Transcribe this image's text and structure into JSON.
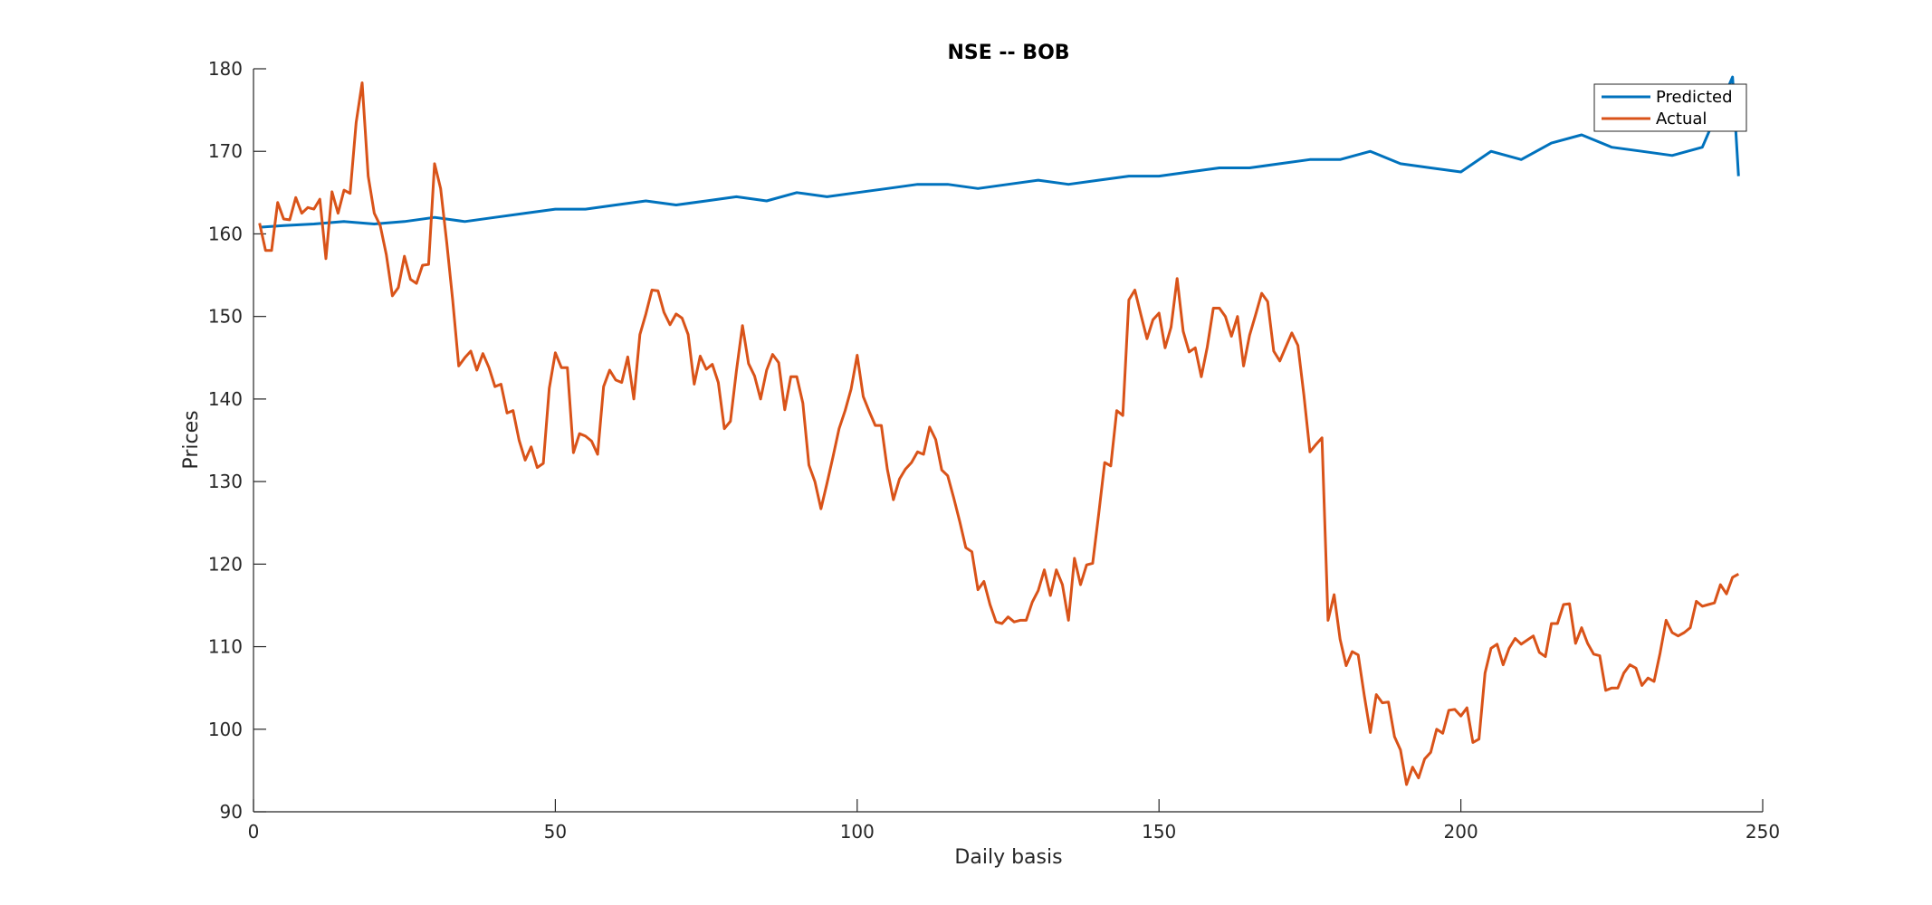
{
  "chart_data": {
    "type": "line",
    "title": "NSE -- BOB",
    "xlabel": "Daily basis",
    "ylabel": "Prices",
    "xlim": [
      0,
      250
    ],
    "ylim": [
      90,
      180
    ],
    "xticks": [
      0,
      50,
      100,
      150,
      200,
      250
    ],
    "yticks": [
      90,
      100,
      110,
      120,
      130,
      140,
      150,
      160,
      170,
      180
    ],
    "grid": false,
    "legend_position": "top-right",
    "series": [
      {
        "name": "Predicted",
        "color": "#0072BD",
        "x": [
          1,
          5,
          10,
          15,
          20,
          25,
          30,
          35,
          40,
          45,
          50,
          55,
          60,
          65,
          70,
          75,
          80,
          85,
          90,
          95,
          100,
          105,
          110,
          115,
          120,
          125,
          130,
          135,
          140,
          145,
          150,
          155,
          160,
          165,
          170,
          175,
          180,
          185,
          190,
          195,
          200,
          205,
          210,
          215,
          220,
          225,
          230,
          235,
          240,
          245,
          246
        ],
        "y": [
          160.8,
          161,
          161.2,
          161.5,
          161.2,
          161.5,
          162,
          161.5,
          162,
          162.5,
          163,
          163,
          163.5,
          164,
          163.5,
          164,
          164.5,
          164,
          165,
          164.5,
          165,
          165.5,
          166,
          166,
          165.5,
          166,
          166.5,
          166,
          166.5,
          167,
          167,
          167.5,
          168,
          168,
          168.5,
          169,
          169,
          170,
          168.5,
          168,
          167.5,
          170,
          169,
          171,
          172,
          170.5,
          170,
          169.5,
          170.5,
          179,
          167
        ]
      },
      {
        "name": "Actual",
        "color": "#D95319",
        "x": [
          1,
          2,
          3,
          4,
          5,
          6,
          7,
          8,
          9,
          10,
          11,
          12,
          13,
          14,
          15,
          16,
          17,
          18,
          19,
          20,
          21,
          22,
          23,
          24,
          25,
          26,
          27,
          28,
          29,
          30,
          31,
          32,
          33,
          34,
          35,
          36,
          37,
          38,
          39,
          40,
          41,
          42,
          43,
          44,
          45,
          46,
          47,
          48,
          49,
          50,
          51,
          52,
          53,
          54,
          55,
          56,
          57,
          58,
          59,
          60,
          61,
          62,
          63,
          64,
          65,
          66,
          67,
          68,
          69,
          70,
          71,
          72,
          73,
          74,
          75,
          76,
          77,
          78,
          79,
          80,
          81,
          82,
          83,
          84,
          85,
          86,
          87,
          88,
          89,
          90,
          91,
          92,
          93,
          94,
          95,
          96,
          97,
          98,
          99,
          100,
          101,
          102,
          103,
          104,
          105,
          106,
          107,
          108,
          109,
          110,
          111,
          112,
          113,
          114,
          115,
          116,
          117,
          118,
          119,
          120,
          121,
          122,
          123,
          124,
          125,
          126,
          127,
          128,
          129,
          130,
          131,
          132,
          133,
          134,
          135,
          136,
          137,
          138,
          139,
          140,
          141,
          142,
          143,
          144,
          145,
          146,
          147,
          148,
          149,
          150,
          151,
          152,
          153,
          154,
          155,
          156,
          157,
          158,
          159,
          160,
          161,
          162,
          163,
          164,
          165,
          166,
          167,
          168,
          169,
          170,
          171,
          172,
          173,
          174,
          175,
          176,
          177,
          178,
          179,
          180,
          181,
          182,
          183,
          184,
          185,
          186,
          187,
          188,
          189,
          190,
          191,
          192,
          193,
          194,
          195,
          196,
          197,
          198,
          199,
          200,
          201,
          202,
          203,
          204,
          205,
          206,
          207,
          208,
          209,
          210,
          211,
          212,
          213,
          214,
          215,
          216,
          217,
          218,
          219,
          220,
          221,
          222,
          223,
          224,
          225,
          226,
          227,
          228,
          229,
          230,
          231,
          232,
          233,
          234,
          235,
          236,
          237,
          238,
          239,
          240,
          241,
          242,
          243,
          244,
          245,
          246
        ],
        "y": [
          161.3,
          158,
          158,
          163.8,
          161.8,
          161.7,
          164.4,
          162.5,
          163.2,
          163,
          164.2,
          157,
          165.1,
          162.5,
          165.3,
          164.9,
          173.5,
          178.3,
          167,
          162.5,
          161,
          157.5,
          152.5,
          153.5,
          157.3,
          154.5,
          154,
          156.2,
          156.3,
          168.5,
          165.5,
          159,
          152,
          144,
          145,
          145.8,
          143.5,
          145.5,
          143.8,
          141.5,
          141.8,
          138.3,
          138.6,
          135,
          132.6,
          134.2,
          131.7,
          132.2,
          141.3,
          145.6,
          143.8,
          143.8,
          133.5,
          135.8,
          135.5,
          134.9,
          133.3,
          141.5,
          143.5,
          142.3,
          142,
          145.1,
          140,
          147.8,
          150.3,
          153.2,
          153.1,
          150.5,
          149,
          150.3,
          149.8,
          147.8,
          141.8,
          145.2,
          143.6,
          144.2,
          142,
          136.4,
          137.3,
          143.4,
          148.9,
          144.3,
          142.8,
          140,
          143.5,
          145.4,
          144.4,
          138.7,
          142.7,
          142.7,
          139.5,
          132,
          130,
          126.7,
          129.8,
          133,
          136.4,
          138.6,
          141.2,
          145.3,
          140.3,
          138.5,
          136.8,
          136.8,
          131.5,
          127.8,
          130.3,
          131.5,
          132.3,
          133.6,
          133.3,
          136.6,
          135.1,
          131.4,
          130.7,
          128,
          125.1,
          122,
          121.5,
          116.9,
          117.9,
          115.1,
          113,
          112.8,
          113.6,
          113,
          113.2,
          113.2,
          115.4,
          116.8,
          119.3,
          116.2,
          119.3,
          117.5,
          113.2,
          120.7,
          117.5,
          119.9,
          120.1,
          126,
          132.3,
          131.9,
          138.6,
          138,
          152,
          153.2,
          150.2,
          147.3,
          149.6,
          150.4,
          146.2,
          148.7,
          154.6,
          148.2,
          145.7,
          146.2,
          142.7,
          146.3,
          151,
          151,
          150,
          147.6,
          150,
          144,
          147.7,
          150.2,
          152.8,
          151.8,
          145.8,
          144.6,
          146.3,
          148,
          146.5,
          140.5,
          133.6,
          134.5,
          135.3,
          113.2,
          116.3,
          110.9,
          107.7,
          109.4,
          109,
          104.1,
          99.6,
          104.2,
          103.2,
          103.3,
          99.1,
          97.5,
          93.3,
          95.4,
          94.1,
          96.4,
          97.2,
          100,
          99.5,
          102.3,
          102.4,
          101.6,
          102.6,
          98.4,
          98.8,
          106.8,
          109.8,
          110.3,
          107.8,
          109.8,
          111,
          110.3,
          110.8,
          111.3,
          109.3,
          108.8,
          112.8,
          112.8,
          115.1,
          115.2,
          110.4,
          112.3,
          110.4,
          109.1,
          108.9,
          104.7,
          105,
          105,
          106.8,
          107.8,
          107.4,
          105.3,
          106.2,
          105.8,
          109.2,
          113.2,
          111.7,
          111.3,
          111.7,
          112.3,
          115.5,
          114.9,
          115.1,
          115.3,
          117.5,
          116.4,
          118.4,
          118.8
        ]
      }
    ]
  }
}
